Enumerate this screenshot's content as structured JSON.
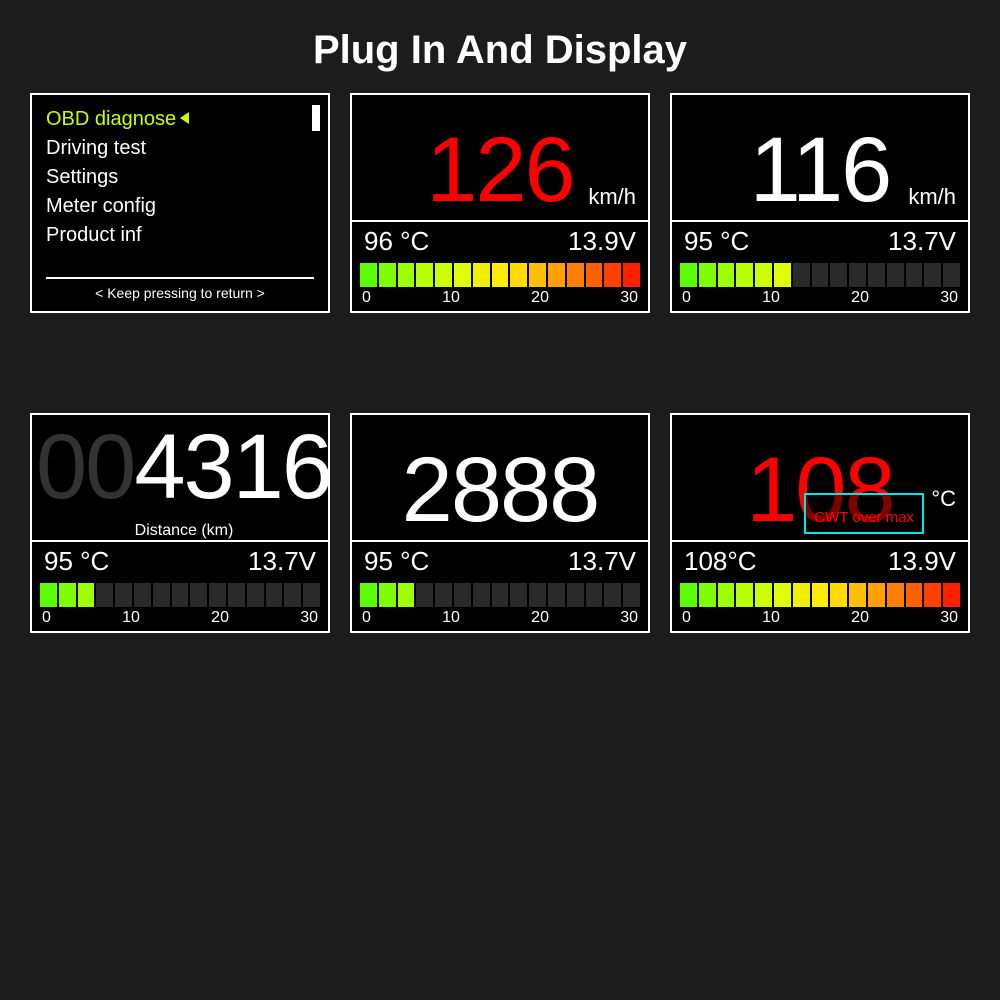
{
  "title": "Plug In And Display",
  "background_color": "#1c1c1c",
  "screen_border_color": "#ffffff",
  "bargraph": {
    "segment_count": 15,
    "gradient": [
      "#5aff00",
      "#7dff00",
      "#9eff00",
      "#b8ff00",
      "#cdff00",
      "#dfff00",
      "#f0f000",
      "#ffee00",
      "#ffda00",
      "#ffc000",
      "#ffa000",
      "#ff8000",
      "#ff6000",
      "#ff4000",
      "#ff2000"
    ],
    "inactive_color": "#2a2a2a",
    "axis": [
      "0",
      "10",
      "20",
      "30"
    ]
  },
  "screens": {
    "menu": {
      "items": [
        {
          "label": "OBD diagnose",
          "selected": true
        },
        {
          "label": "Driving test",
          "selected": false
        },
        {
          "label": "Settings",
          "selected": false
        },
        {
          "label": "Meter config",
          "selected": false
        },
        {
          "label": "Product  inf",
          "selected": false
        }
      ],
      "footer": "< Keep  pressing to return >"
    },
    "speed_red": {
      "value": "126",
      "value_color": "#ff0000",
      "unit": "km/h",
      "temp": "96 °C",
      "volt": "13.9V",
      "bar_fill": 15
    },
    "speed_white": {
      "value": "116",
      "value_color": "#ffffff",
      "unit": "km/h",
      "temp": "95 °C",
      "volt": "13.7V",
      "bar_fill": 6
    },
    "distance": {
      "faded": "00",
      "value": "4316",
      "value_color": "#ffffff",
      "sublabel": "Distance (km)",
      "temp": "95 °C",
      "volt": "13.7V",
      "bar_fill": 3
    },
    "rpm": {
      "value": "2888",
      "value_color": "#ffffff",
      "temp": "95 °C",
      "volt": "13.7V",
      "bar_fill": 3
    },
    "overtemp": {
      "value": "108",
      "value_color": "#ff0000",
      "unit": "°C",
      "warning": "CWT over max",
      "temp": "108°C",
      "volt": "13.9V",
      "bar_fill": 15
    }
  }
}
